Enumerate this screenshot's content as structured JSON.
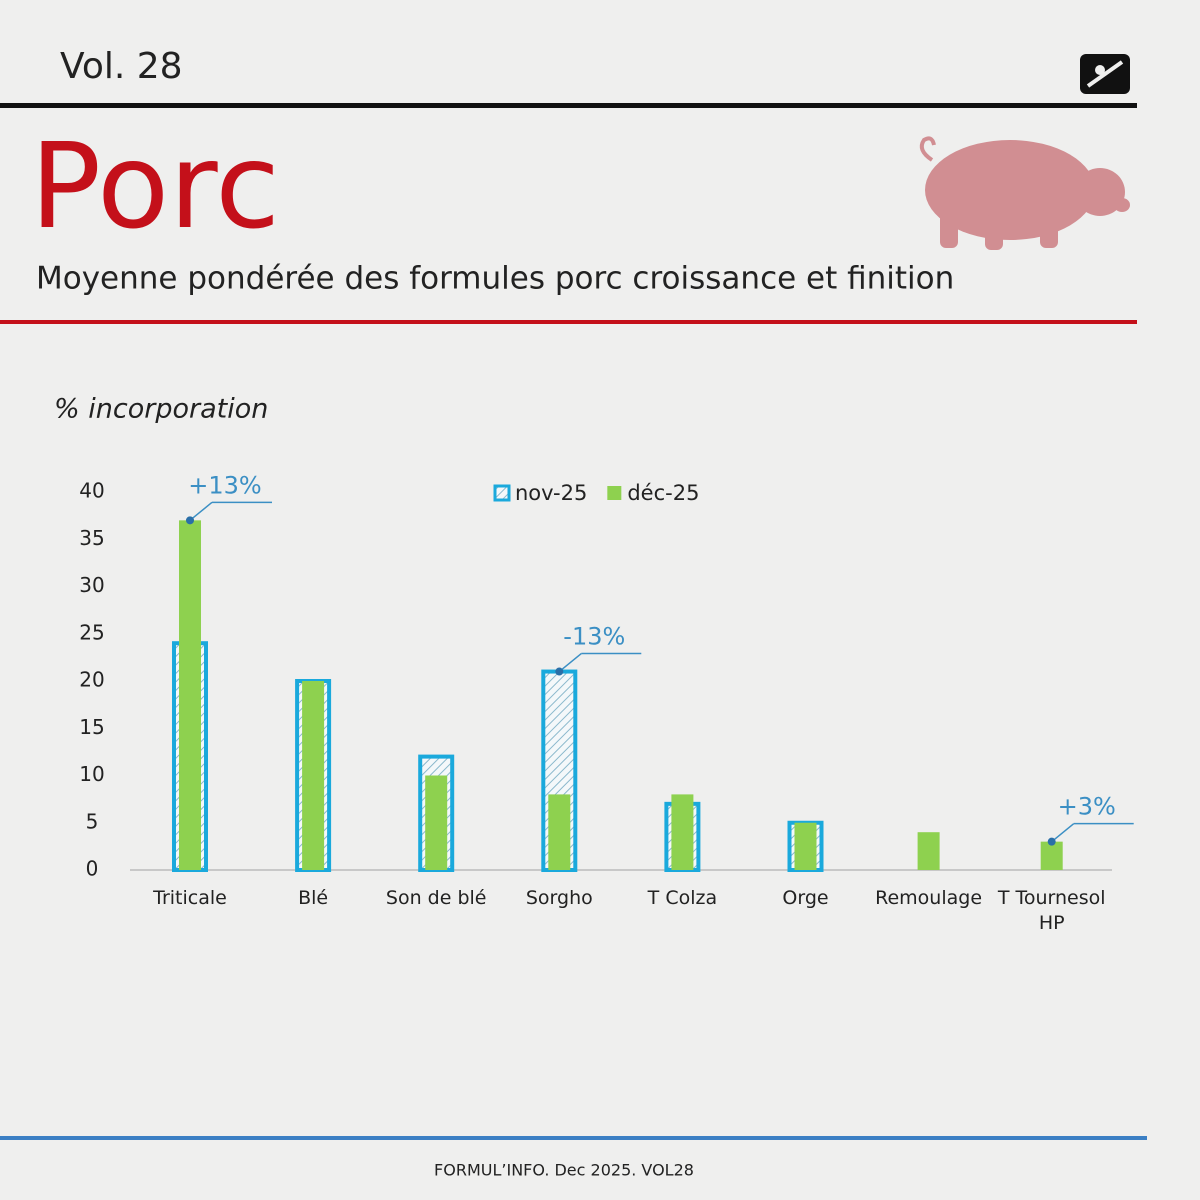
{
  "header": {
    "volume": "Vol. 28",
    "title": "Porc",
    "subtitle": "Moyenne pondérée des formules porc croissance et finition"
  },
  "chart_data": {
    "type": "bar",
    "y_label": "% incorporation",
    "categories": [
      "Triticale",
      "Blé",
      "Son de blé",
      "Sorgho",
      "T Colza",
      "Orge",
      "Remoulage",
      "T Tournesol HP"
    ],
    "series": [
      {
        "name": "nov-25",
        "color": "#1aa9dc",
        "values": [
          24,
          20,
          12,
          21,
          7,
          5,
          0,
          0
        ]
      },
      {
        "name": "déc-25",
        "color": "#8ed14f",
        "values": [
          37,
          20,
          10,
          8,
          8,
          5,
          4,
          3
        ]
      }
    ],
    "ylim": [
      0,
      40
    ],
    "yticks": [
      0,
      5,
      10,
      15,
      20,
      25,
      30,
      35,
      40
    ],
    "grid": false,
    "legend": "top",
    "annotations": [
      {
        "label": "+13%",
        "category": 0
      },
      {
        "label": "-13%",
        "category": 3
      },
      {
        "label": "+3%",
        "category": 7
      }
    ]
  },
  "footer": "FORMUL’INFO. Dec 2025. VOL28"
}
